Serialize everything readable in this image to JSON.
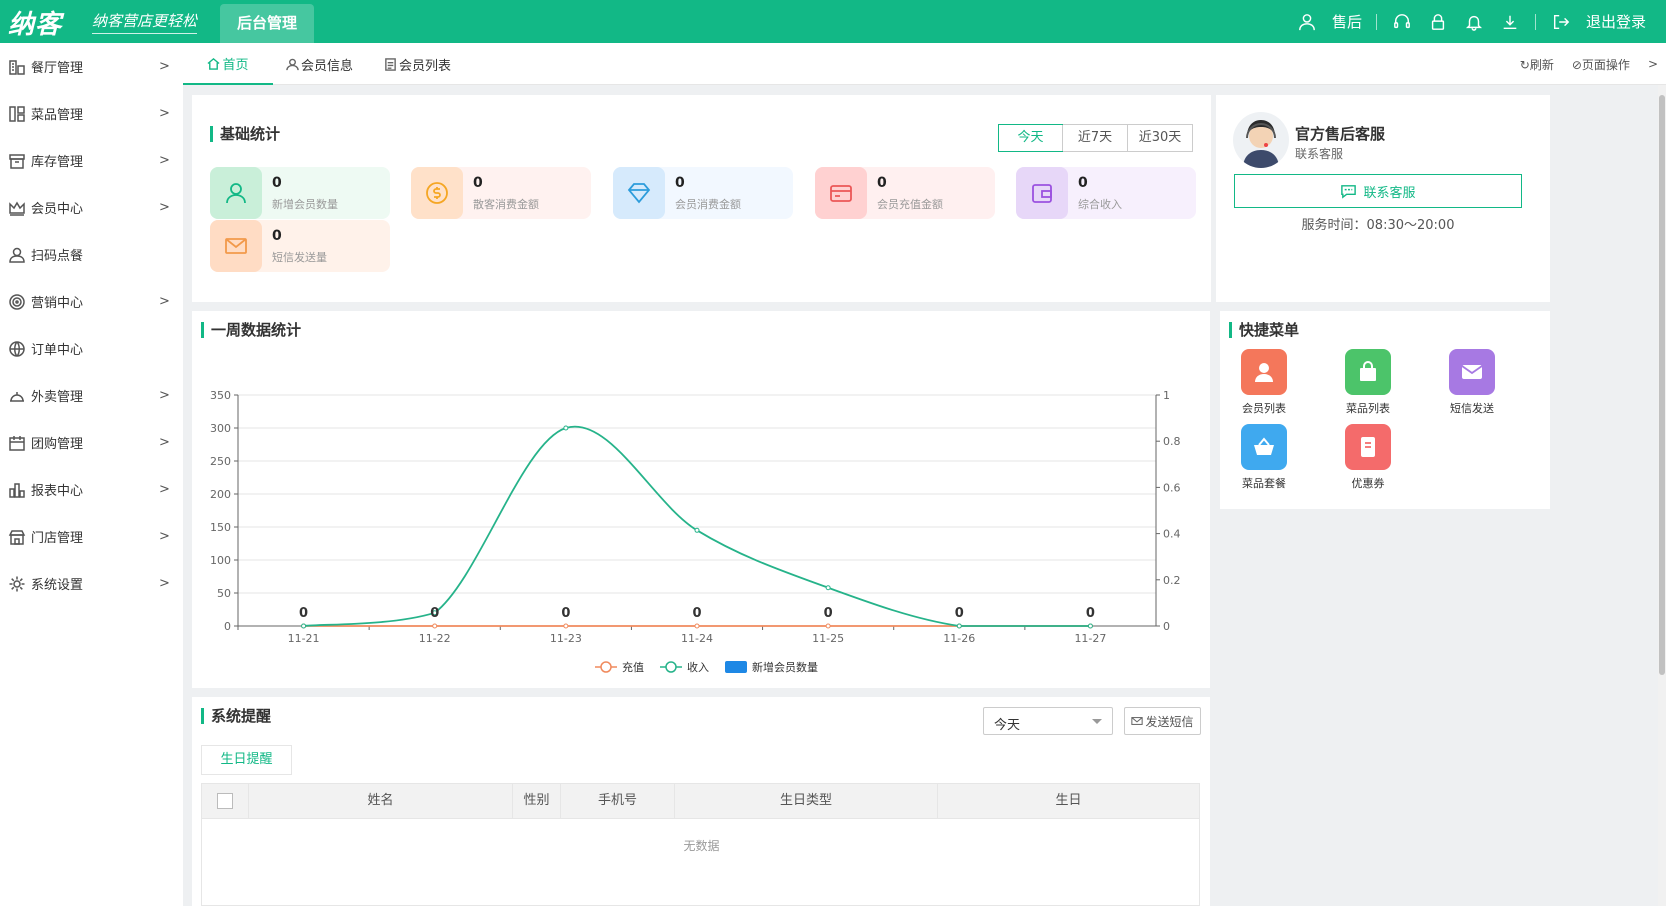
{
  "header": {
    "logo": "纳客",
    "slogan": "纳客营店更轻松",
    "admin_tab": "后台管理",
    "after_sales": "售后",
    "logout": "退出登录",
    "brand_color": "#12b886"
  },
  "sidebar": {
    "items": [
      {
        "label": "餐厅管理",
        "icon": "restaurant-icon",
        "arrow": true
      },
      {
        "label": "菜品管理",
        "icon": "dish-icon",
        "arrow": true
      },
      {
        "label": "库存管理",
        "icon": "inventory-icon",
        "arrow": true
      },
      {
        "label": "会员中心",
        "icon": "crown-icon",
        "arrow": true
      },
      {
        "label": "扫码点餐",
        "icon": "user-icon",
        "arrow": false
      },
      {
        "label": "营销中心",
        "icon": "target-icon",
        "arrow": true
      },
      {
        "label": "订单中心",
        "icon": "globe-icon",
        "arrow": false
      },
      {
        "label": "外卖管理",
        "icon": "delivery-icon",
        "arrow": true
      },
      {
        "label": "团购管理",
        "icon": "calendar-icon",
        "arrow": true
      },
      {
        "label": "报表中心",
        "icon": "report-icon",
        "arrow": true
      },
      {
        "label": "门店管理",
        "icon": "store-icon",
        "arrow": true
      },
      {
        "label": "系统设置",
        "icon": "gear-icon",
        "arrow": true
      }
    ]
  },
  "tabs": {
    "home": "首页",
    "member_info": "会员信息",
    "member_list": "会员列表",
    "refresh": "刷新",
    "page_ops": "页面操作"
  },
  "basic_stats": {
    "title": "基础统计",
    "ranges": [
      "今天",
      "近7天",
      "近30天"
    ],
    "cards": [
      {
        "value": "0",
        "label": "新增会员数量",
        "bg": "#eefaf3",
        "icon_bg": "#c9efd9",
        "color": "#12b886",
        "icon": "user-icon"
      },
      {
        "value": "0",
        "label": "散客消费金额",
        "bg": "#fff2f0",
        "icon_bg": "#ffe1c9",
        "color": "#f5a623",
        "icon": "coin-icon"
      },
      {
        "value": "0",
        "label": "会员消费金额",
        "bg": "#f2f8ff",
        "icon_bg": "#d6eafc",
        "color": "#2d9cdb",
        "icon": "diamond-icon"
      },
      {
        "value": "0",
        "label": "会员充值金额",
        "bg": "#fff0f0",
        "icon_bg": "#ffd1d1",
        "color": "#eb5757",
        "icon": "card-icon"
      },
      {
        "value": "0",
        "label": "综合收入",
        "bg": "#f7f0fd",
        "icon_bg": "#e7d7f8",
        "color": "#9b51e0",
        "icon": "wallet-icon"
      },
      {
        "value": "0",
        "label": "短信发送量",
        "bg": "#fff2ea",
        "icon_bg": "#ffdcc4",
        "color": "#f2994a",
        "icon": "mail-icon"
      }
    ]
  },
  "service": {
    "title": "官方售后客服",
    "subtitle": "联系客服",
    "button": "联系客服",
    "hours": "服务时间：08:30～20:00"
  },
  "weekly": {
    "title": "一周数据统计"
  },
  "chart_data": {
    "type": "line",
    "categories": [
      "11-21",
      "11-22",
      "11-23",
      "11-24",
      "11-25",
      "11-26",
      "11-27"
    ],
    "series": [
      {
        "name": "充值",
        "type": "line",
        "color": "#f08a5d",
        "values": [
          0,
          0,
          0,
          0,
          0,
          0,
          0
        ]
      },
      {
        "name": "收入",
        "type": "line",
        "color": "#26b38a",
        "values": [
          0,
          20,
          300,
          145,
          58,
          0,
          0
        ]
      },
      {
        "name": "新增会员数量",
        "type": "bar",
        "color": "#1e88e5",
        "values": [
          0,
          0,
          0,
          0,
          0,
          0,
          0
        ]
      }
    ],
    "y_left": {
      "min": 0,
      "max": 350,
      "ticks": [
        "0",
        "50",
        "100",
        "150",
        "200",
        "250",
        "300",
        "350"
      ]
    },
    "y_right": {
      "min": 0,
      "max": 1,
      "ticks": [
        "0",
        "0.2",
        "0.4",
        "0.6",
        "0.8",
        "1"
      ]
    },
    "data_labels": [
      "0",
      "0",
      "0",
      "0",
      "0",
      "0",
      "0"
    ],
    "grid": true,
    "legend": "bottom"
  },
  "quick_menu": {
    "title": "快捷菜单",
    "items": [
      {
        "label": "会员列表",
        "color": "#f4775b",
        "icon": "user-icon"
      },
      {
        "label": "菜品列表",
        "color": "#4cc46a",
        "icon": "bag-icon"
      },
      {
        "label": "短信发送",
        "color": "#a779e3",
        "icon": "mail-icon"
      },
      {
        "label": "菜品套餐",
        "color": "#3fa9ef",
        "icon": "basket-icon"
      },
      {
        "label": "优惠券",
        "color": "#f46b6b",
        "icon": "coupon-icon"
      }
    ]
  },
  "reminder": {
    "title": "系统提醒",
    "select_value": "今天",
    "send_sms": "发送短信",
    "tab": "生日提醒",
    "columns": [
      "姓名",
      "性别",
      "手机号",
      "生日类型",
      "生日"
    ],
    "empty": "无数据"
  }
}
